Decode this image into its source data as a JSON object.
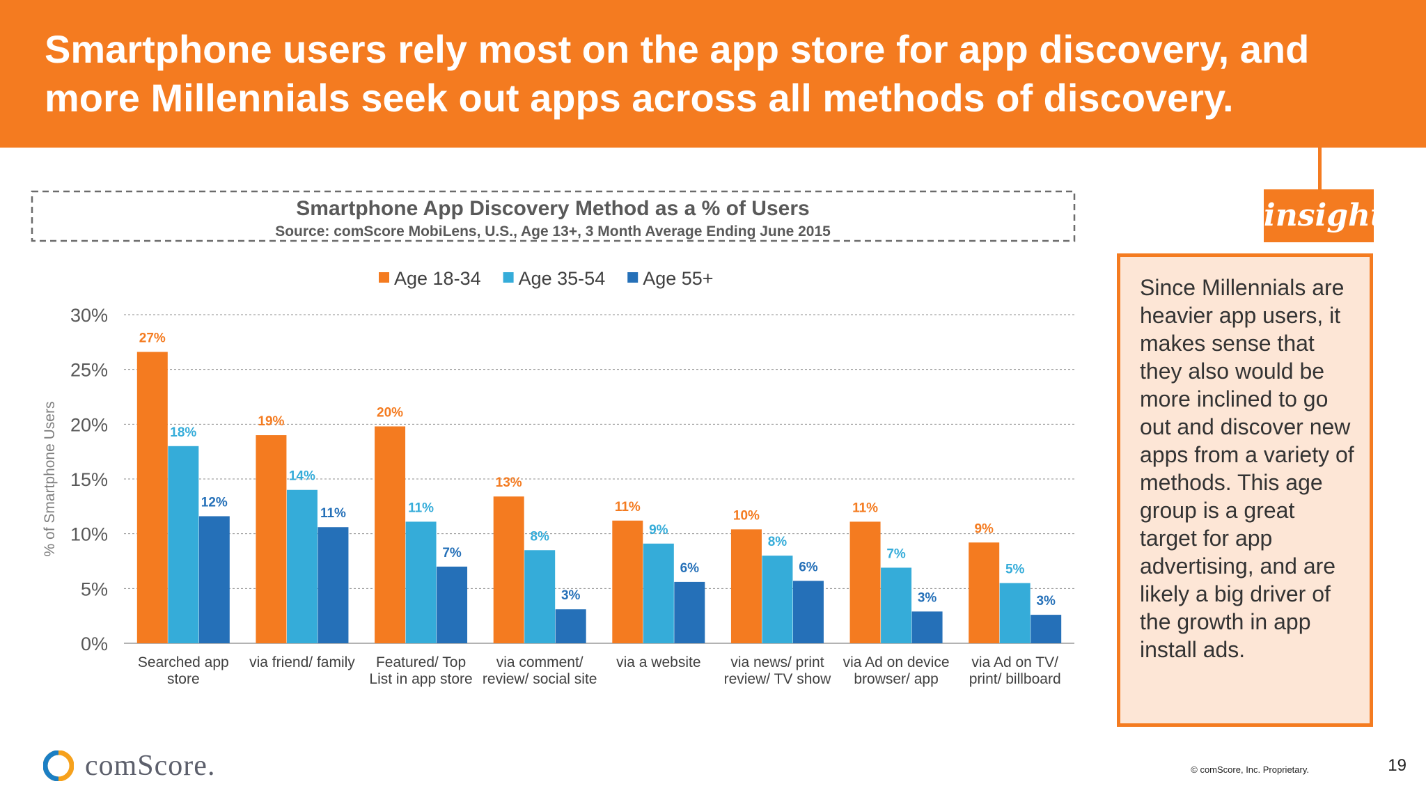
{
  "header": {
    "title_line1": "Smartphone users rely most on the app store for app discovery, and",
    "title_line2": "more Millennials seek out apps across all methods of discovery."
  },
  "insight": {
    "tag": "insight",
    "text": "Since Millennials are heavier app users, it makes sense that they also would be more inclined to go out and discover new apps from a variety of methods. This age group is a great target for app advertising, and are likely a big driver of the growth in app install ads."
  },
  "footer": {
    "logo_text": "comScore.",
    "copyright": "© comScore, Inc. Proprietary.",
    "page_number": "19"
  },
  "colors": {
    "brand_orange": "#f47b20",
    "series_orange": "#f47b20",
    "series_light_blue": "#35acd9",
    "series_dark_blue": "#2570b8",
    "insight_fill": "#fde6d6"
  },
  "chart_data": {
    "type": "bar",
    "title": "Smartphone App Discovery Method as a % of Users",
    "subtitle": "Source: comScore MobiLens, U.S., Age 13+, 3 Month Average Ending June 2015",
    "xlabel": "",
    "ylabel": "% of Smartphone Users",
    "ylim": [
      0,
      30
    ],
    "yticks": [
      "0%",
      "5%",
      "10%",
      "15%",
      "20%",
      "25%",
      "30%"
    ],
    "grid": true,
    "legend_position": "top",
    "categories": [
      [
        "Searched app",
        "store"
      ],
      [
        "via friend/ family"
      ],
      [
        "Featured/ Top",
        "List in app store"
      ],
      [
        "via comment/",
        "review/ social site"
      ],
      [
        "via a website"
      ],
      [
        "via news/ print",
        "review/ TV show"
      ],
      [
        "via Ad on device",
        "browser/ app"
      ],
      [
        "via Ad on TV/",
        "print/ billboard"
      ]
    ],
    "series": [
      {
        "name": "Age 18-34",
        "color": "#f47b20",
        "values": [
          26.6,
          19.0,
          19.8,
          13.4,
          11.2,
          10.4,
          11.1,
          9.2
        ],
        "labels": [
          "27%",
          "19%",
          "20%",
          "13%",
          "11%",
          "10%",
          "11%",
          "9%"
        ]
      },
      {
        "name": "Age 35-54",
        "color": "#35acd9",
        "values": [
          18.0,
          14.0,
          11.1,
          8.5,
          9.1,
          8.0,
          6.9,
          5.5
        ],
        "labels": [
          "18%",
          "14%",
          "11%",
          "8%",
          "9%",
          "8%",
          "7%",
          "5%"
        ]
      },
      {
        "name": "Age 55+",
        "color": "#2570b8",
        "values": [
          11.6,
          10.6,
          7.0,
          3.1,
          5.6,
          5.7,
          2.9,
          2.6
        ],
        "labels": [
          "12%",
          "11%",
          "7%",
          "3%",
          "6%",
          "6%",
          "3%",
          "3%"
        ]
      }
    ]
  }
}
